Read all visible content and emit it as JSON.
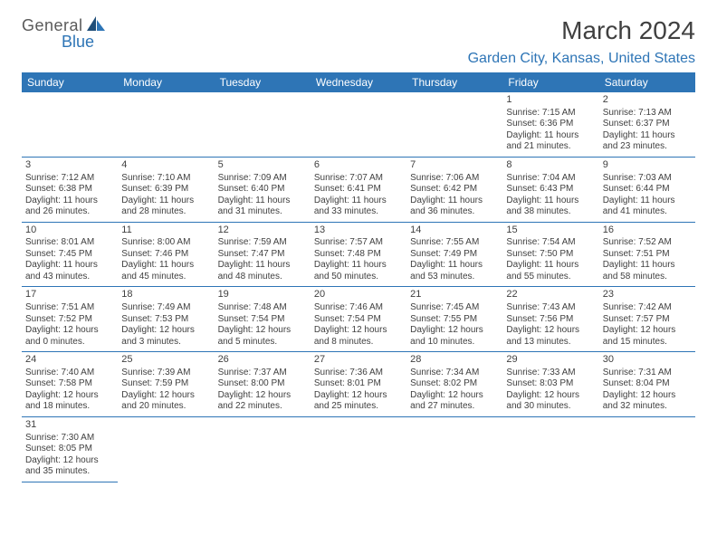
{
  "logo": {
    "text1": "General",
    "text2": "Blue"
  },
  "title": "March 2024",
  "location": "Garden City, Kansas, United States",
  "colors": {
    "header_bg": "#2e75b6",
    "header_text": "#ffffff",
    "accent": "#2e75b6",
    "body_text": "#404040",
    "background": "#ffffff"
  },
  "weekdays": [
    "Sunday",
    "Monday",
    "Tuesday",
    "Wednesday",
    "Thursday",
    "Friday",
    "Saturday"
  ],
  "blank_cells_before": 5,
  "days": [
    {
      "n": "1",
      "sr": "7:15 AM",
      "ss": "6:36 PM",
      "dl": "11 hours and 21 minutes."
    },
    {
      "n": "2",
      "sr": "7:13 AM",
      "ss": "6:37 PM",
      "dl": "11 hours and 23 minutes."
    },
    {
      "n": "3",
      "sr": "7:12 AM",
      "ss": "6:38 PM",
      "dl": "11 hours and 26 minutes."
    },
    {
      "n": "4",
      "sr": "7:10 AM",
      "ss": "6:39 PM",
      "dl": "11 hours and 28 minutes."
    },
    {
      "n": "5",
      "sr": "7:09 AM",
      "ss": "6:40 PM",
      "dl": "11 hours and 31 minutes."
    },
    {
      "n": "6",
      "sr": "7:07 AM",
      "ss": "6:41 PM",
      "dl": "11 hours and 33 minutes."
    },
    {
      "n": "7",
      "sr": "7:06 AM",
      "ss": "6:42 PM",
      "dl": "11 hours and 36 minutes."
    },
    {
      "n": "8",
      "sr": "7:04 AM",
      "ss": "6:43 PM",
      "dl": "11 hours and 38 minutes."
    },
    {
      "n": "9",
      "sr": "7:03 AM",
      "ss": "6:44 PM",
      "dl": "11 hours and 41 minutes."
    },
    {
      "n": "10",
      "sr": "8:01 AM",
      "ss": "7:45 PM",
      "dl": "11 hours and 43 minutes."
    },
    {
      "n": "11",
      "sr": "8:00 AM",
      "ss": "7:46 PM",
      "dl": "11 hours and 45 minutes."
    },
    {
      "n": "12",
      "sr": "7:59 AM",
      "ss": "7:47 PM",
      "dl": "11 hours and 48 minutes."
    },
    {
      "n": "13",
      "sr": "7:57 AM",
      "ss": "7:48 PM",
      "dl": "11 hours and 50 minutes."
    },
    {
      "n": "14",
      "sr": "7:55 AM",
      "ss": "7:49 PM",
      "dl": "11 hours and 53 minutes."
    },
    {
      "n": "15",
      "sr": "7:54 AM",
      "ss": "7:50 PM",
      "dl": "11 hours and 55 minutes."
    },
    {
      "n": "16",
      "sr": "7:52 AM",
      "ss": "7:51 PM",
      "dl": "11 hours and 58 minutes."
    },
    {
      "n": "17",
      "sr": "7:51 AM",
      "ss": "7:52 PM",
      "dl": "12 hours and 0 minutes."
    },
    {
      "n": "18",
      "sr": "7:49 AM",
      "ss": "7:53 PM",
      "dl": "12 hours and 3 minutes."
    },
    {
      "n": "19",
      "sr": "7:48 AM",
      "ss": "7:54 PM",
      "dl": "12 hours and 5 minutes."
    },
    {
      "n": "20",
      "sr": "7:46 AM",
      "ss": "7:54 PM",
      "dl": "12 hours and 8 minutes."
    },
    {
      "n": "21",
      "sr": "7:45 AM",
      "ss": "7:55 PM",
      "dl": "12 hours and 10 minutes."
    },
    {
      "n": "22",
      "sr": "7:43 AM",
      "ss": "7:56 PM",
      "dl": "12 hours and 13 minutes."
    },
    {
      "n": "23",
      "sr": "7:42 AM",
      "ss": "7:57 PM",
      "dl": "12 hours and 15 minutes."
    },
    {
      "n": "24",
      "sr": "7:40 AM",
      "ss": "7:58 PM",
      "dl": "12 hours and 18 minutes."
    },
    {
      "n": "25",
      "sr": "7:39 AM",
      "ss": "7:59 PM",
      "dl": "12 hours and 20 minutes."
    },
    {
      "n": "26",
      "sr": "7:37 AM",
      "ss": "8:00 PM",
      "dl": "12 hours and 22 minutes."
    },
    {
      "n": "27",
      "sr": "7:36 AM",
      "ss": "8:01 PM",
      "dl": "12 hours and 25 minutes."
    },
    {
      "n": "28",
      "sr": "7:34 AM",
      "ss": "8:02 PM",
      "dl": "12 hours and 27 minutes."
    },
    {
      "n": "29",
      "sr": "7:33 AM",
      "ss": "8:03 PM",
      "dl": "12 hours and 30 minutes."
    },
    {
      "n": "30",
      "sr": "7:31 AM",
      "ss": "8:04 PM",
      "dl": "12 hours and 32 minutes."
    },
    {
      "n": "31",
      "sr": "7:30 AM",
      "ss": "8:05 PM",
      "dl": "12 hours and 35 minutes."
    }
  ],
  "labels": {
    "sunrise": "Sunrise:",
    "sunset": "Sunset:",
    "daylight": "Daylight:"
  }
}
